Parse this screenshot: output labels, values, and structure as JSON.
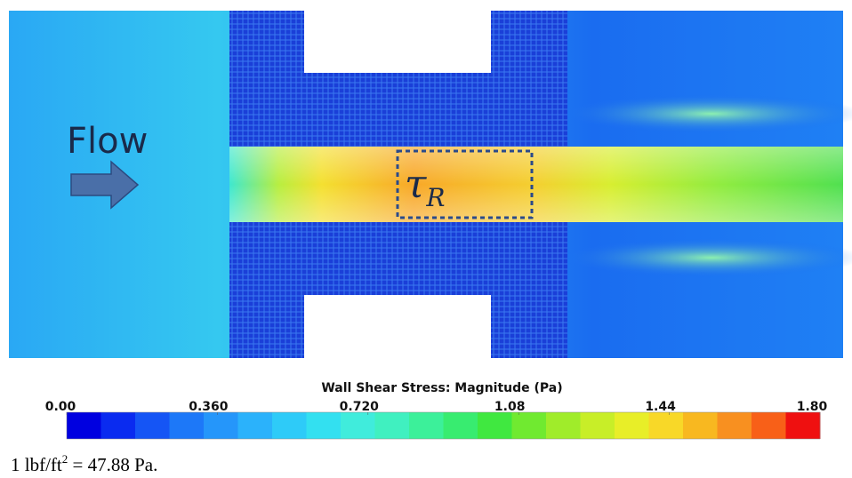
{
  "figure": {
    "annotations": {
      "flow": "Flow",
      "region": "τ",
      "region_subscript": "R"
    },
    "colorbar": {
      "title": "Wall Shear Stress: Magnitude (Pa)",
      "lim": [
        0,
        1.8
      ],
      "ticks": [
        {
          "value": 0,
          "label": "0.00"
        },
        {
          "value": 0.36,
          "label": "0.360"
        },
        {
          "value": 0.72,
          "label": "0.720"
        },
        {
          "value": 1.08,
          "label": "1.08"
        },
        {
          "value": 1.44,
          "label": "1.44"
        },
        {
          "value": 1.8,
          "label": "1.80"
        }
      ],
      "colors": [
        "#0000e0",
        "#0a2bf0",
        "#1555f5",
        "#1d78f8",
        "#2596fa",
        "#2bb2fb",
        "#2ecbf8",
        "#33e0f0",
        "#40ecdc",
        "#40f0c0",
        "#3cf09a",
        "#38ec70",
        "#40e840",
        "#70ea30",
        "#a0ec2a",
        "#c8ee28",
        "#e8ee28",
        "#f8d828",
        "#f8b820",
        "#f89020",
        "#f86018",
        "#ef1010"
      ]
    }
  },
  "caption": {
    "before": "1 lbf/ft",
    "superscript": "2",
    "after": " = 47.88 Pa."
  }
}
